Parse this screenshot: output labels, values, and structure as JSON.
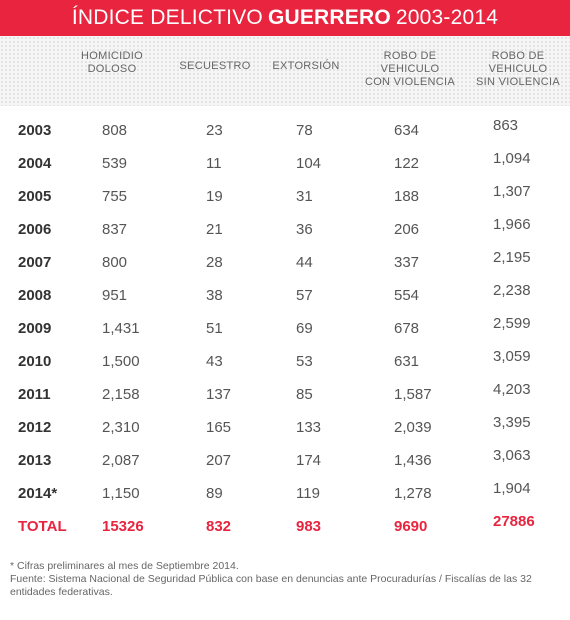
{
  "title": {
    "prefix": "ÍNDICE DELICTIVO",
    "state": "GUERRERO",
    "years": "2003-2014"
  },
  "columns": [
    "HOMICIDIO\nDOLOSO",
    "SECUESTRO",
    "EXTORSIÓN",
    "ROBO DE\nVEHICULO\nCON VIOLENCIA",
    "ROBO DE\nVEHICULO\nSIN VIOLENCIA"
  ],
  "rows": [
    {
      "year": "2003",
      "values": [
        "808",
        "23",
        "78",
        "634",
        "863"
      ]
    },
    {
      "year": "2004",
      "values": [
        "539",
        "11",
        "104",
        "122",
        "1,094"
      ]
    },
    {
      "year": "2005",
      "values": [
        "755",
        "19",
        "31",
        "188",
        "1,307"
      ]
    },
    {
      "year": "2006",
      "values": [
        "837",
        "21",
        "36",
        "206",
        "1,966"
      ]
    },
    {
      "year": "2007",
      "values": [
        "800",
        "28",
        "44",
        "337",
        "2,195"
      ]
    },
    {
      "year": "2008",
      "values": [
        "951",
        "38",
        "57",
        "554",
        "2,238"
      ]
    },
    {
      "year": "2009",
      "values": [
        "1,431",
        "51",
        "69",
        "678",
        "2,599"
      ]
    },
    {
      "year": "2010",
      "values": [
        "1,500",
        "43",
        "53",
        "631",
        "3,059"
      ]
    },
    {
      "year": "2011",
      "values": [
        "2,158",
        "137",
        "85",
        "1,587",
        "4,203"
      ]
    },
    {
      "year": "2012",
      "values": [
        "2,310",
        "165",
        "133",
        "2,039",
        "3,395"
      ]
    },
    {
      "year": "2013",
      "values": [
        "2,087",
        "207",
        "174",
        "1,436",
        "3,063"
      ]
    },
    {
      "year": "2014*",
      "values": [
        "1,150",
        "89",
        "119",
        "1,278",
        "1,904"
      ]
    }
  ],
  "total": {
    "label": "TOTAL",
    "values": [
      "15326",
      "832",
      "983",
      "9690",
      "27886"
    ]
  },
  "notes": {
    "footnote": "* Cifras preliminares al mes de Septiembre 2014.",
    "source": "Fuente: Sistema Nacional de Seguridad Pública con base en denuncias ante Procuradurías / Fiscalías de las 32 entidades federativas."
  },
  "colors": {
    "accent": "#e8243f"
  }
}
